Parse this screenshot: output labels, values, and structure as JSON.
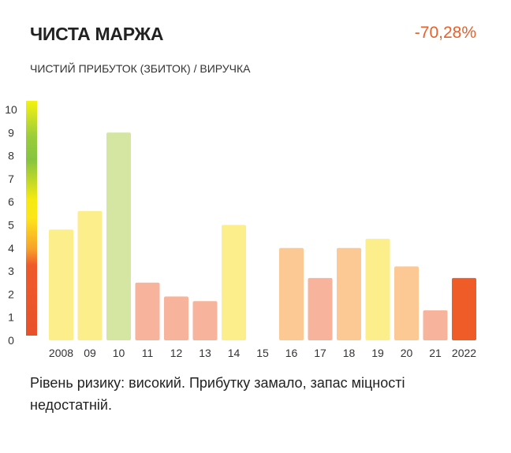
{
  "header": {
    "title": "ЧИСТА МАРЖА",
    "value": "-70,28%",
    "subtitle": "ЧИСТИЙ ПРИБУТОК (ЗБИТОК) / ВИРУЧКА"
  },
  "chart_data": {
    "type": "bar",
    "categories": [
      "2008",
      "09",
      "10",
      "11",
      "12",
      "13",
      "14",
      "15",
      "16",
      "17",
      "18",
      "19",
      "20",
      "21",
      "2022"
    ],
    "values": [
      4.8,
      5.6,
      9.0,
      2.5,
      1.9,
      1.7,
      5.0,
      0,
      4.0,
      2.7,
      4.0,
      4.4,
      3.2,
      1.3,
      2.7
    ],
    "colors": [
      "#fcee8b",
      "#fcee8b",
      "#d4e6a1",
      "#f7b39c",
      "#f7b39c",
      "#f7b39c",
      "#fcee8b",
      "#ffffff",
      "#fcc995",
      "#f7b39c",
      "#fcc995",
      "#fcee8b",
      "#fcc995",
      "#f7b39c",
      "#ef5c28"
    ],
    "ylim": [
      0,
      10
    ],
    "yticks": [
      "0",
      "1",
      "2",
      "3",
      "4",
      "5",
      "6",
      "7",
      "8",
      "9",
      "10"
    ],
    "title": "",
    "xlabel": "",
    "ylabel": "",
    "grid": false,
    "scale_gradient": [
      "#e8522a",
      "#f07f2b",
      "#fde02a",
      "#f5e80c",
      "#8cc63f",
      "#7cbf3e",
      "#f3f20e"
    ]
  },
  "note": "Рівень ризику: високий. Прибутку замало, запас міцності недостатній."
}
